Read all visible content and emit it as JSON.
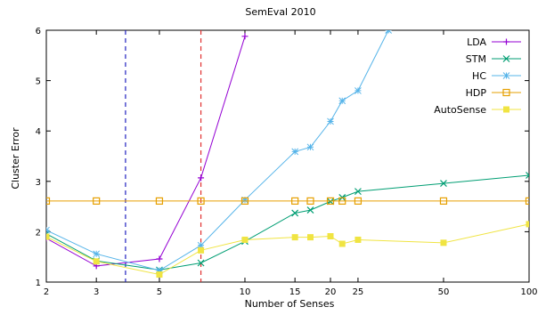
{
  "chart_data": {
    "type": "line",
    "title": "SemEval 2010",
    "xlabel": "Number of Senses",
    "ylabel": "Cluster Error",
    "x_scale": "log",
    "xlim": [
      2,
      100
    ],
    "ylim": [
      1,
      6
    ],
    "x_ticks": [
      2,
      3,
      5,
      10,
      15,
      20,
      25,
      50,
      100
    ],
    "y_ticks": [
      1,
      2,
      3,
      4,
      5,
      6
    ],
    "grid": false,
    "legend_position": "top-right",
    "vertical_lines": [
      {
        "x": 3.8,
        "color": "#1f1fbf"
      },
      {
        "x": 7,
        "color": "#e03030"
      }
    ],
    "series": [
      {
        "name": "LDA",
        "color": "#9400d3",
        "marker": "plus",
        "x": [
          2,
          3,
          5,
          7,
          10
        ],
        "y": [
          1.87,
          1.32,
          1.46,
          3.07,
          5.88
        ]
      },
      {
        "name": "STM",
        "color": "#009e73",
        "marker": "cross",
        "x": [
          2,
          3,
          5,
          7,
          10,
          15,
          17,
          20,
          22,
          25,
          50,
          100
        ],
        "y": [
          1.96,
          1.42,
          1.24,
          1.38,
          1.81,
          2.37,
          2.43,
          2.6,
          2.68,
          2.8,
          2.96,
          3.12
        ]
      },
      {
        "name": "HC",
        "color": "#56b4e9",
        "marker": "star",
        "x": [
          2,
          3,
          5,
          7,
          10,
          15,
          17,
          20,
          22,
          25,
          32
        ],
        "y": [
          2.03,
          1.56,
          1.23,
          1.73,
          2.63,
          3.59,
          3.68,
          4.19,
          4.6,
          4.8,
          6.0
        ]
      },
      {
        "name": "HDP",
        "color": "#e69f00",
        "marker": "square-open",
        "x": [
          2,
          3,
          5,
          7,
          10,
          15,
          17,
          20,
          22,
          25,
          50,
          100
        ],
        "y": [
          2.61,
          2.61,
          2.61,
          2.61,
          2.61,
          2.61,
          2.61,
          2.61,
          2.61,
          2.61,
          2.61,
          2.61
        ]
      },
      {
        "name": "AutoSense",
        "color": "#f0e442",
        "marker": "square-filled",
        "x": [
          2,
          3,
          5,
          7,
          10,
          15,
          17,
          20,
          22,
          25,
          50,
          100
        ],
        "y": [
          1.9,
          1.41,
          1.15,
          1.63,
          1.84,
          1.89,
          1.89,
          1.91,
          1.76,
          1.84,
          1.78,
          2.15
        ]
      }
    ]
  }
}
